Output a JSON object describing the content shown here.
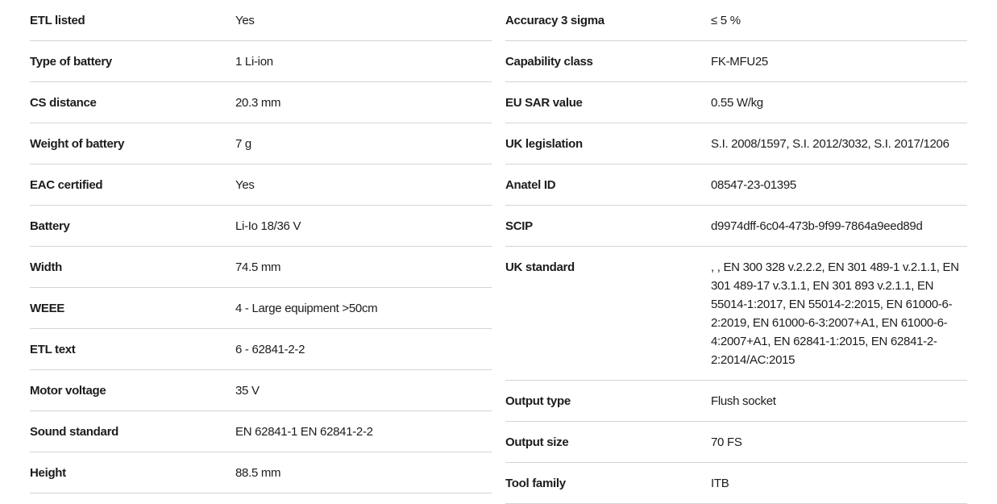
{
  "theme": {
    "background_color": "#ffffff",
    "text_color": "#1c1c1c",
    "divider_color": "#d4d4d4"
  },
  "spec_tables": {
    "left": {
      "rows": [
        {
          "label": "ETL listed",
          "value": "Yes"
        },
        {
          "label": "Type of battery",
          "value": "1 Li-ion"
        },
        {
          "label": "CS distance",
          "value": "20.3 mm"
        },
        {
          "label": "Weight of battery",
          "value": "7 g"
        },
        {
          "label": "EAC certified",
          "value": "Yes"
        },
        {
          "label": "Battery",
          "value": "Li-Io 18/36 V"
        },
        {
          "label": "Width",
          "value": "74.5 mm"
        },
        {
          "label": "WEEE",
          "value": "4 - Large equipment >50cm"
        },
        {
          "label": "ETL text",
          "value": "6 - 62841-2-2"
        },
        {
          "label": "Motor voltage",
          "value": "35 V"
        },
        {
          "label": "Sound standard",
          "value": "EN 62841-1 EN 62841-2-2"
        },
        {
          "label": "Height",
          "value": "88.5 mm"
        }
      ]
    },
    "right": {
      "rows": [
        {
          "label": "Accuracy 3 sigma",
          "value": "≤ 5 %"
        },
        {
          "label": "Capability class",
          "value": "FK-MFU25"
        },
        {
          "label": "EU SAR value",
          "value": "0.55 W/kg"
        },
        {
          "label": "UK legislation",
          "value": "S.I. 2008/1597, S.I. 2012/3032, S.I. 2017/1206"
        },
        {
          "label": "Anatel ID",
          "value": "08547-23-01395"
        },
        {
          "label": "SCIP",
          "value": "d9974dff-6c04-473b-9f99-7864a9eed89d"
        },
        {
          "label": "UK standard",
          "value": ", , EN 300 328 v.2.2.2, EN 301 489-1 v.2.1.1, EN 301 489-17 v.3.1.1, EN 301 893 v.2.1.1, EN 55014-1:2017, EN 55014-2:2015, EN 61000-6-2:2019, EN 61000-6-3:2007+A1, EN 61000-6-4:2007+A1, EN 62841-1:2015, EN 62841-2-2:2014/AC:2015"
        },
        {
          "label": "Output type",
          "value": "Flush socket"
        },
        {
          "label": "Output size",
          "value": "70 FS"
        },
        {
          "label": "Tool family",
          "value": "ITB"
        }
      ]
    }
  }
}
